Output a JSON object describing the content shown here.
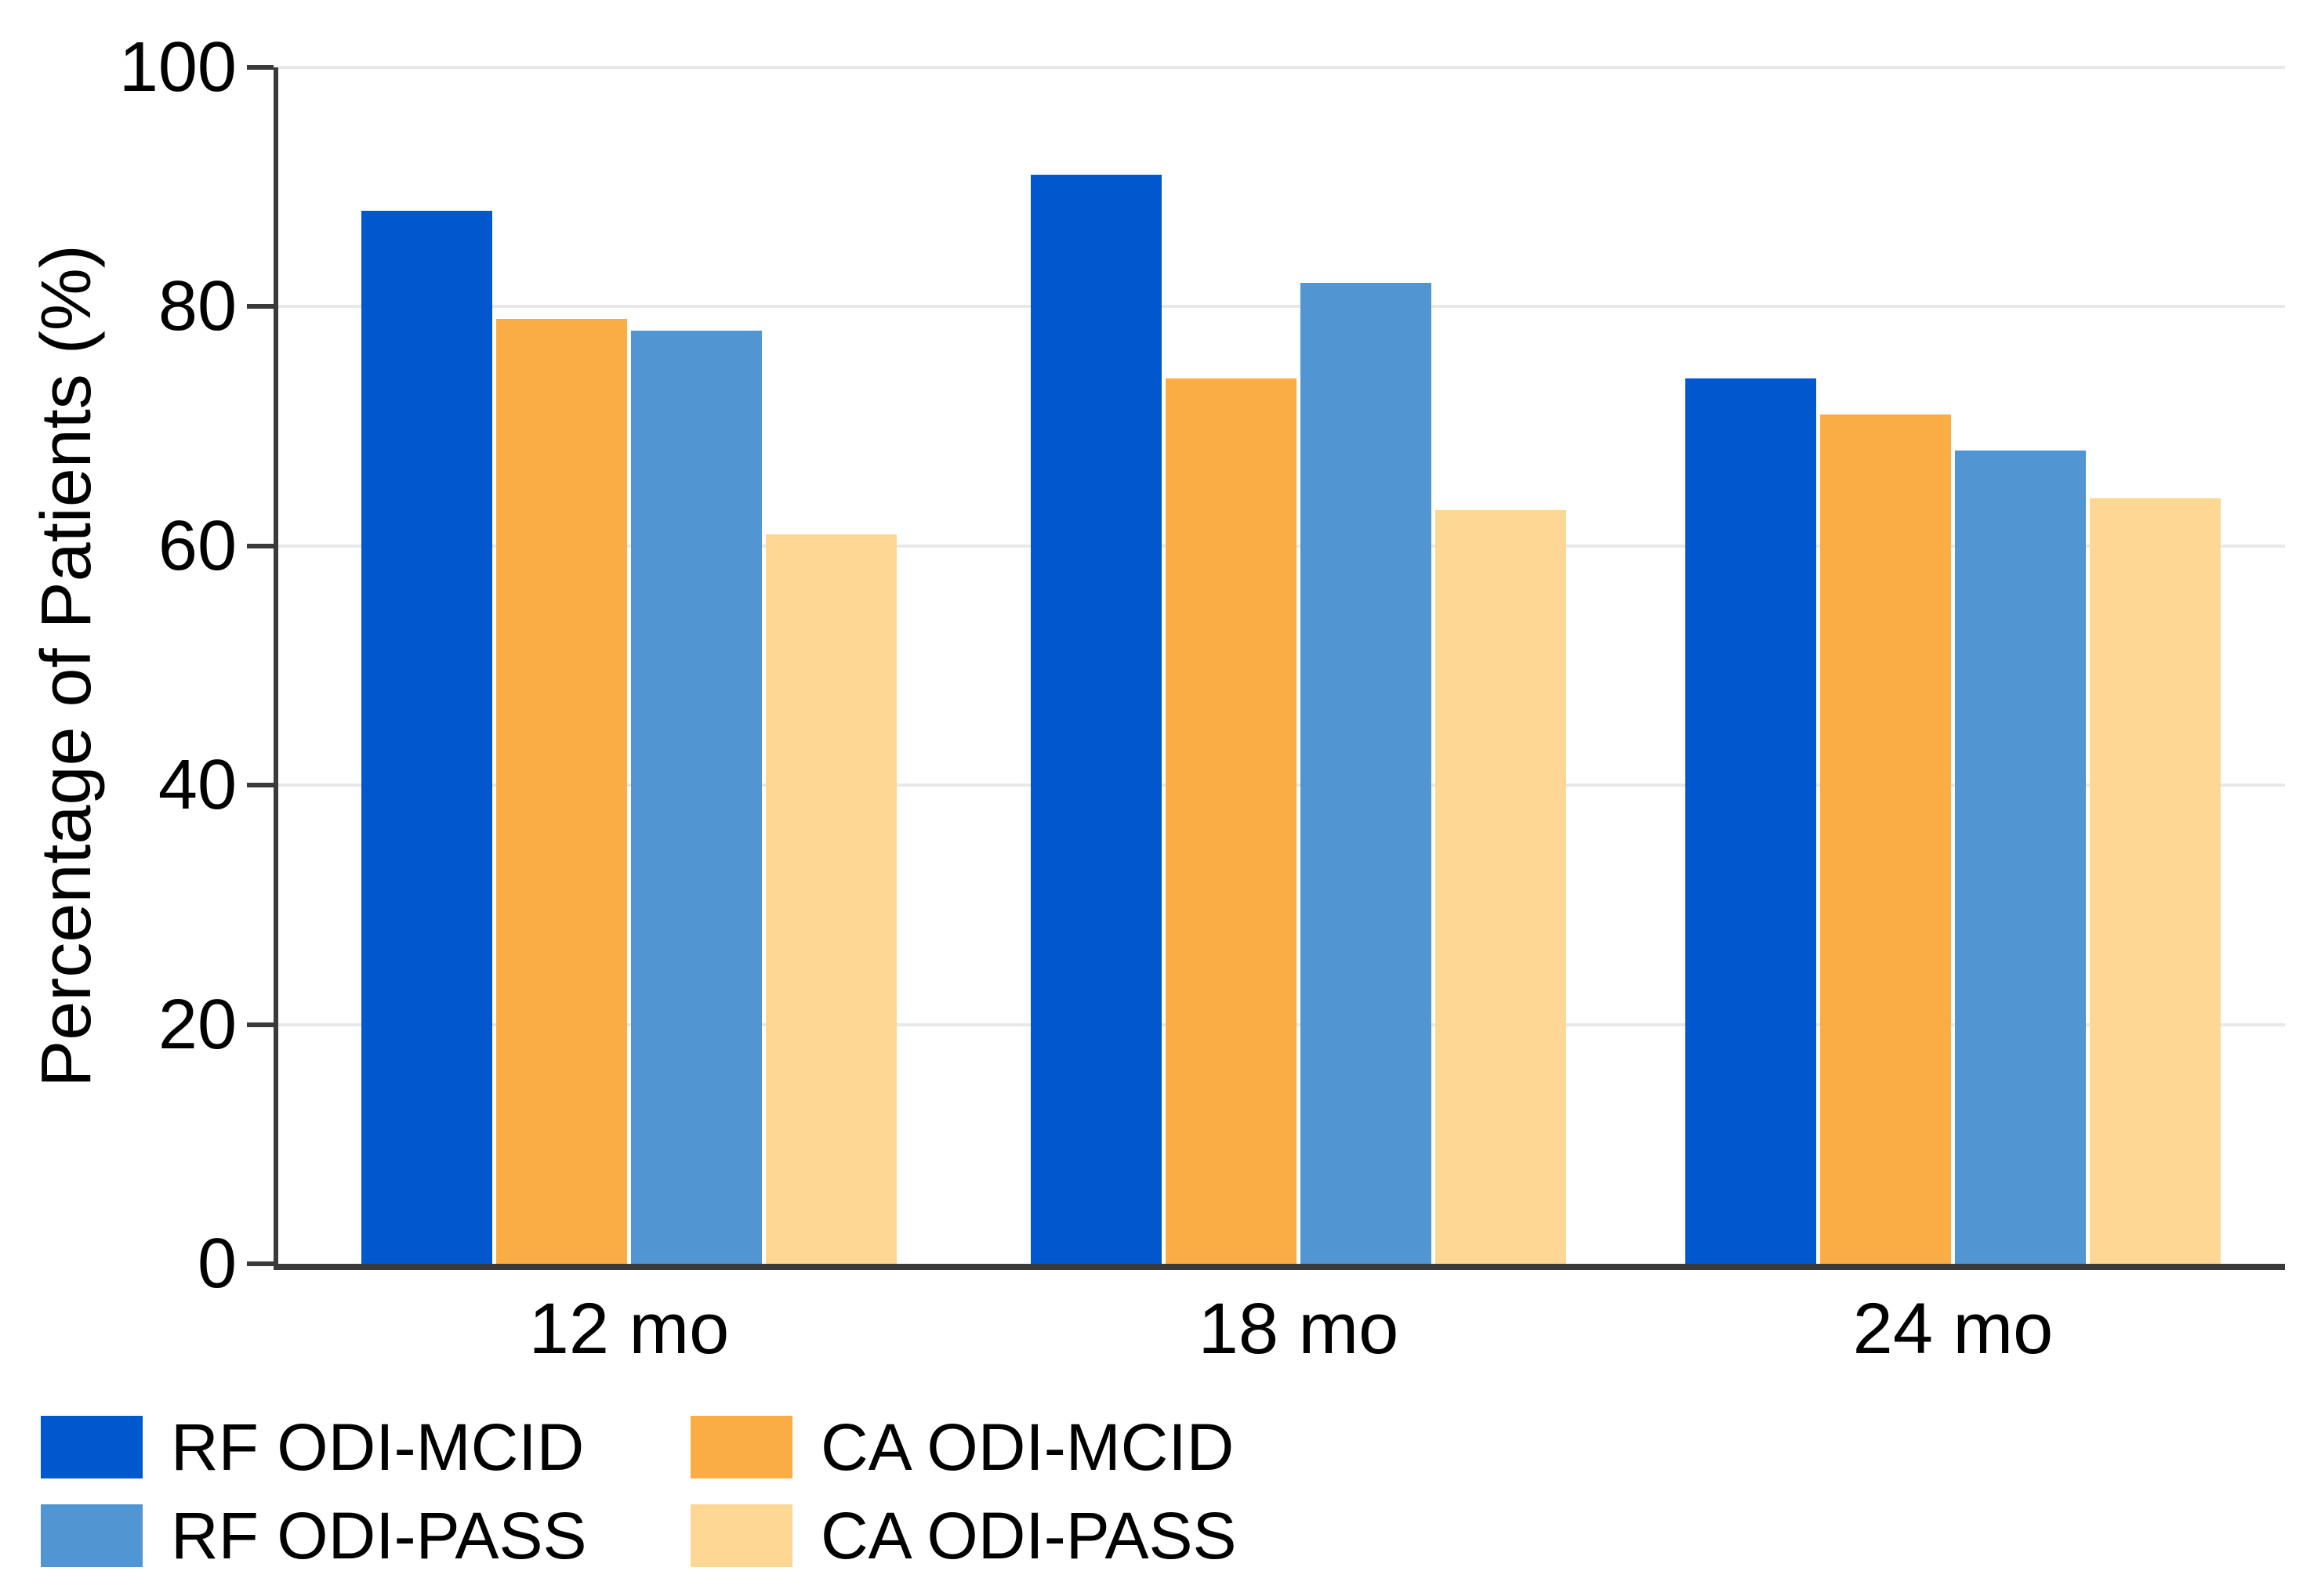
{
  "chart_data": {
    "type": "bar",
    "title": "",
    "xlabel": "",
    "ylabel": "Percentage of Patients (%)",
    "ylim": [
      0,
      100
    ],
    "yticks": [
      0,
      20,
      40,
      60,
      80,
      100
    ],
    "grid": "horizontal",
    "legend_position": "bottom-left",
    "categories": [
      "12 mo",
      "18 mo",
      "24 mo"
    ],
    "series": [
      {
        "name": "RF ODI-MCID",
        "color": "#0057CE",
        "values": [
          88,
          91,
          74
        ]
      },
      {
        "name": "CA ODI-MCID",
        "color": "#FBAD45",
        "values": [
          79,
          74,
          71
        ]
      },
      {
        "name": "RF ODI-PASS",
        "color": "#5195D2",
        "values": [
          78,
          82,
          68
        ]
      },
      {
        "name": "CA ODI-PASS",
        "color": "#FED795",
        "values": [
          61,
          63,
          64
        ]
      }
    ],
    "legend_items": [
      {
        "label": "RF ODI-MCID",
        "color": "#0057CE"
      },
      {
        "label": "RF ODI-PASS",
        "color": "#5195D2"
      },
      {
        "label": "CA ODI-MCID",
        "color": "#FBAD45"
      },
      {
        "label": "CA ODI-PASS",
        "color": "#FED795"
      }
    ]
  },
  "style": {
    "grid_color": "#e8e8e8",
    "axis_color": "#3a3a3a",
    "text_color": "#000000",
    "background": "#ffffff"
  }
}
